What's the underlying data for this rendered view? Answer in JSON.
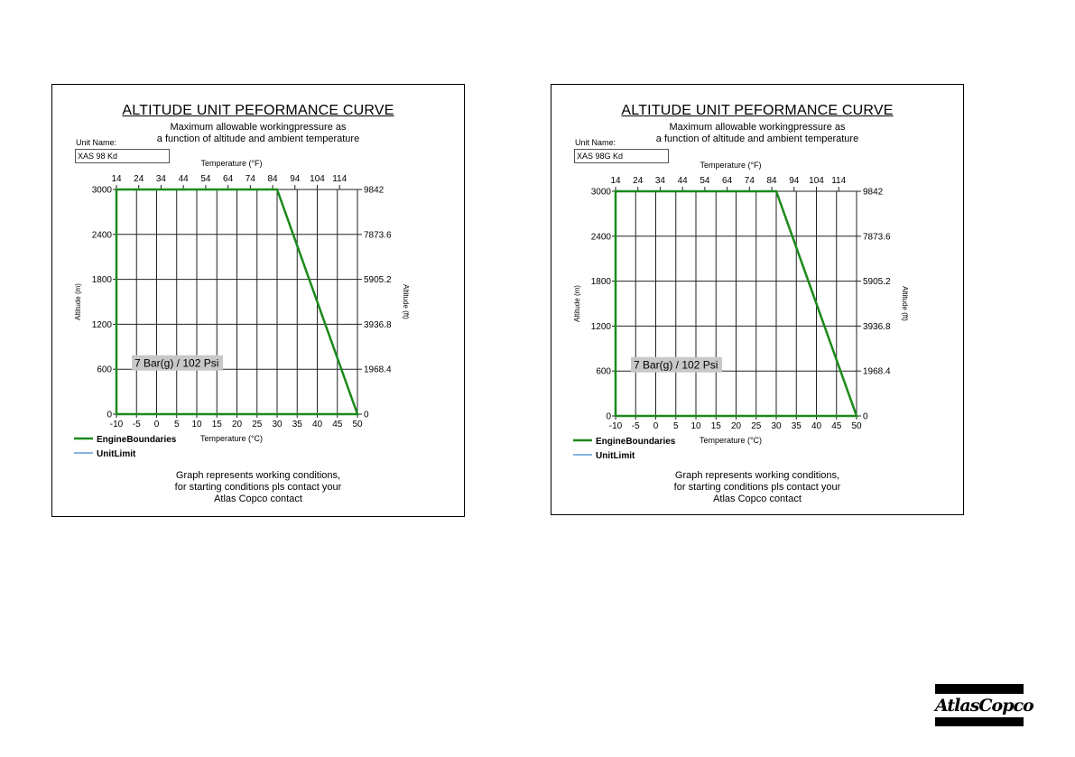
{
  "chart_data": [
    {
      "type": "line",
      "title": "ALTITUDE UNIT PEFORMANCE CURVE",
      "subtitle": [
        "Maximum allowable workingpressure as",
        "a function of altitude and ambient temperature"
      ],
      "unit_name_label": "Unit Name:",
      "unit_name": "XAS 98 Kd",
      "xlabel": "Temperature (°C)",
      "x2label": "Temperature (°F)",
      "ylabel": "Altitude (m)",
      "y2label": "Altitude (ft)",
      "xlim": [
        -10,
        50
      ],
      "ylim": [
        0,
        3000
      ],
      "x_ticks": [
        "-10",
        "-5",
        "0",
        "5",
        "10",
        "15",
        "20",
        "25",
        "30",
        "35",
        "40",
        "45",
        "50"
      ],
      "x2_ticks": [
        "14",
        "24",
        "34",
        "44",
        "54",
        "64",
        "74",
        "84",
        "94",
        "104",
        "114"
      ],
      "y_ticks": [
        "0",
        "600",
        "1200",
        "1800",
        "2400",
        "3000"
      ],
      "y2_ticks": [
        "0",
        "1968.4",
        "3936.8",
        "5905.2",
        "7873.6",
        "9842"
      ],
      "grid": true,
      "annotation": "7 Bar(g) / 102 Psi",
      "series": [
        {
          "name": "EngineBoundaries",
          "color": "#1a8a1a",
          "x": [
            -10,
            -10,
            30,
            50,
            50,
            -10
          ],
          "y": [
            0,
            3000,
            3000,
            0,
            0,
            0
          ]
        },
        {
          "name": "UnitLimit",
          "color": "#5b9bd5",
          "x": [],
          "y": []
        }
      ],
      "legend_position": "bottom-left",
      "footer": [
        "Graph represents working conditions,",
        "for starting conditions pls contact your",
        "Atlas Copco contact"
      ]
    },
    {
      "type": "line",
      "title": "ALTITUDE UNIT PEFORMANCE CURVE",
      "subtitle": [
        "Maximum allowable workingpressure as",
        "a function of altitude and ambient temperature"
      ],
      "unit_name_label": "Unit Name:",
      "unit_name": "XAS 98G Kd",
      "xlabel": "Temperature (°C)",
      "x2label": "Temperature (°F)",
      "ylabel": "Altitude (m)",
      "y2label": "Altitude (ft)",
      "xlim": [
        -10,
        50
      ],
      "ylim": [
        0,
        3000
      ],
      "x_ticks": [
        "-10",
        "-5",
        "0",
        "5",
        "10",
        "15",
        "20",
        "25",
        "30",
        "35",
        "40",
        "45",
        "50"
      ],
      "x2_ticks": [
        "14",
        "24",
        "34",
        "44",
        "54",
        "64",
        "74",
        "84",
        "94",
        "104",
        "114"
      ],
      "y_ticks": [
        "0",
        "600",
        "1200",
        "1800",
        "2400",
        "3000"
      ],
      "y2_ticks": [
        "0",
        "1968.4",
        "3936.8",
        "5905.2",
        "7873.6",
        "9842"
      ],
      "grid": true,
      "annotation": "7 Bar(g) / 102 Psi",
      "series": [
        {
          "name": "EngineBoundaries",
          "color": "#1a8a1a",
          "x": [
            -10,
            -10,
            30,
            50,
            50,
            -10
          ],
          "y": [
            0,
            3000,
            3000,
            0,
            0,
            0
          ]
        },
        {
          "name": "UnitLimit",
          "color": "#5b9bd5",
          "x": [],
          "y": []
        }
      ],
      "legend_position": "bottom-left",
      "footer": [
        "Graph represents working conditions,",
        "for starting conditions pls contact your",
        "Atlas Copco contact"
      ]
    }
  ],
  "logo": {
    "text": "AtlasCopco"
  }
}
